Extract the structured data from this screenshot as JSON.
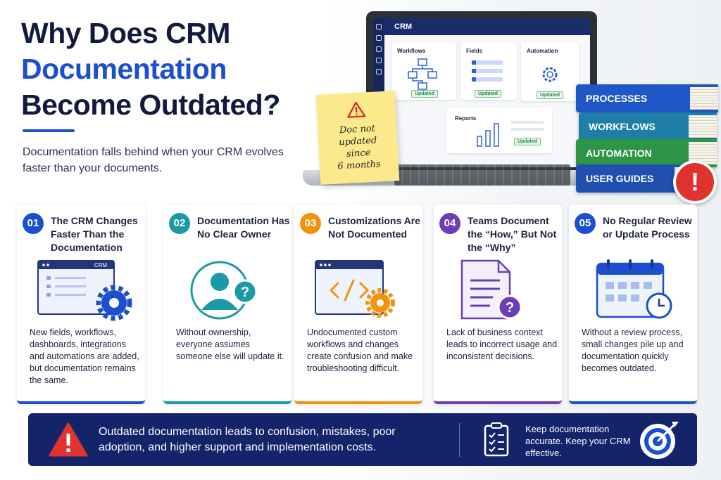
{
  "header": {
    "title_line1": "Why Does CRM",
    "title_line2": "Documentation",
    "title_line3": "Become Outdated?",
    "subtitle": "Documentation falls behind when your CRM evolves faster than your documents."
  },
  "laptop": {
    "app_title": "CRM",
    "panels": [
      {
        "label": "Workflows",
        "badge": "Updated"
      },
      {
        "label": "Fields",
        "badge": "Updated"
      },
      {
        "label": "Automation",
        "badge": "Updated"
      },
      {
        "label": "Reports",
        "badge": "Updated"
      }
    ]
  },
  "sticky_note": {
    "line1": "Doc not",
    "line2": "updated",
    "line3": "since",
    "line4": "6 months"
  },
  "books": [
    "PROCESSES",
    "WORKFLOWS",
    "AUTOMATION",
    "USER GUIDES"
  ],
  "alert_symbol": "!",
  "cards": [
    {
      "num": "01",
      "title": "The CRM Changes Faster Than the Documentation",
      "desc": "New fields, workflows, dashboards, integrations and automations are added, but documentation remains the same.",
      "color": "#1b4fd0",
      "mini_label": "CRM"
    },
    {
      "num": "02",
      "title": "Documentation Has No Clear Owner",
      "desc": "Without ownership, everyone assumes someone else will update it.",
      "color": "#1a9aa6"
    },
    {
      "num": "03",
      "title": "Customizations Are Not Documented",
      "desc": "Undocumented custom workflows and changes create confusion and make troubleshooting difficult.",
      "color": "#f2930f"
    },
    {
      "num": "04",
      "title": "Teams Document the “How,” But Not the “Why”",
      "desc": "Lack of business context leads to incorrect usage and inconsistent decisions.",
      "color": "#6a3fb5"
    },
    {
      "num": "05",
      "title": "No Regular Review or Update Process",
      "desc": "Without a review process, small changes pile up and documentation quickly becomes outdated.",
      "color": "#1b4fd0"
    }
  ],
  "banner": {
    "message": "Outdated documentation leads to confusion, mistakes, poor adoption, and higher support and implementation costs.",
    "cta": "Keep documentation accurate. Keep your CRM effective."
  }
}
